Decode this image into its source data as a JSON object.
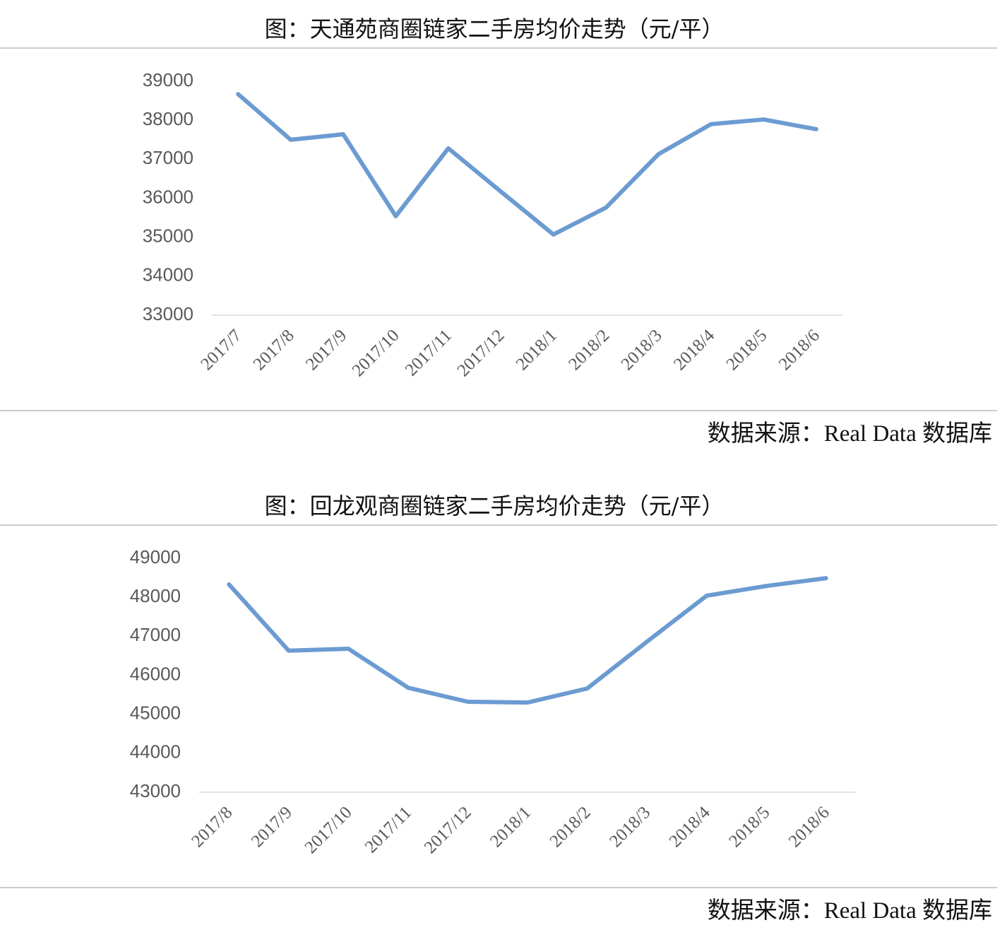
{
  "chart_data": [
    {
      "type": "line",
      "title": "图：天通苑商圈链家二手房均价走势（元/平）",
      "source": "数据来源：Real Data 数据库",
      "categories": [
        "2017/7",
        "2017/8",
        "2017/9",
        "2017/10",
        "2017/11",
        "2017/12",
        "2018/1",
        "2018/2",
        "2018/3",
        "2018/4",
        "2018/5",
        "2018/6"
      ],
      "series": [
        {
          "color": "#6b9bd1",
          "values": [
            38670,
            37500,
            37640,
            35540,
            37280,
            36170,
            35070,
            35760,
            37130,
            37900,
            38020,
            37770
          ]
        }
      ],
      "ylim": [
        33000,
        39000
      ],
      "yticks": [
        33000,
        34000,
        35000,
        36000,
        37000,
        38000,
        39000
      ],
      "grid": false
    },
    {
      "type": "line",
      "title": "图：回龙观商圈链家二手房均价走势（元/平）",
      "source": "数据来源：Real Data 数据库",
      "categories": [
        "2017/8",
        "2017/9",
        "2017/10",
        "2017/11",
        "2017/12",
        "2018/1",
        "2018/2",
        "2018/3",
        "2018/4",
        "2018/5",
        "2018/6"
      ],
      "series": [
        {
          "color": "#6b9bd1",
          "values": [
            48330,
            46630,
            46680,
            45680,
            45320,
            45300,
            45660,
            46860,
            48040,
            48290,
            48490
          ]
        }
      ],
      "ylim": [
        43000,
        49000
      ],
      "yticks": [
        43000,
        44000,
        45000,
        46000,
        47000,
        48000,
        49000
      ],
      "grid": false
    }
  ]
}
